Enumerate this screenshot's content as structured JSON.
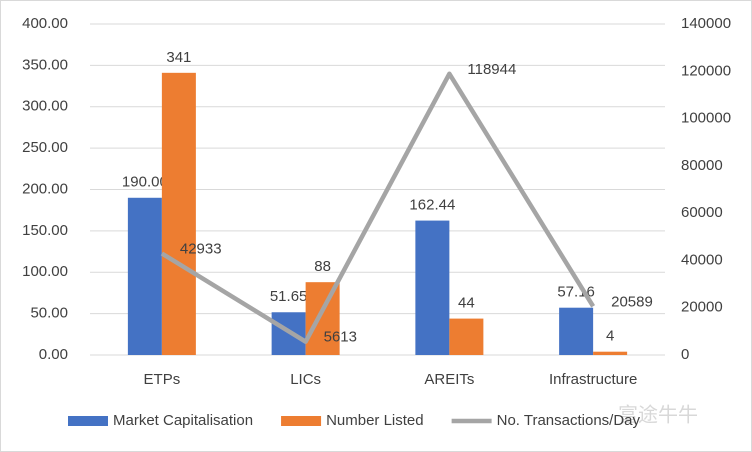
{
  "chart_data": {
    "type": "bar",
    "categories": [
      "ETPs",
      "LICs",
      "AREITs",
      "Infrastructure"
    ],
    "series": [
      {
        "name": "Market Capitalisation",
        "color": "#4472c4",
        "type": "bar",
        "values": [
          190,
          51.65,
          162.44,
          57.16
        ],
        "value_labels": [
          "190.00",
          "51.65",
          "162.44",
          "57.16"
        ]
      },
      {
        "name": "Number Listed",
        "color": "#ed7d31",
        "type": "bar",
        "values": [
          341,
          88,
          44,
          4
        ]
      },
      {
        "name": "No. Transactions/Day",
        "color": "#a5a5a5",
        "type": "line",
        "axis": "y2",
        "values": [
          42933,
          5613,
          118944,
          20589
        ]
      }
    ],
    "ylim": [
      0,
      400
    ],
    "yticks": [
      {
        "value": 0,
        "label": "0.00"
      },
      {
        "value": 50,
        "label": "50.00"
      },
      {
        "value": 100,
        "label": "100.00"
      },
      {
        "value": 150,
        "label": "150.00"
      },
      {
        "value": 200,
        "label": "200.00"
      },
      {
        "value": 250,
        "label": "250.00"
      },
      {
        "value": 300,
        "label": "300.00"
      },
      {
        "value": 350,
        "label": "350.00"
      },
      {
        "value": 400,
        "label": "400.00"
      }
    ],
    "y2lim": [
      0,
      140000
    ],
    "y2ticks": [
      0,
      20000,
      40000,
      60000,
      80000,
      100000,
      120000,
      140000
    ],
    "grid": true,
    "legend": "bottom",
    "watermark": "富途牛牛"
  }
}
